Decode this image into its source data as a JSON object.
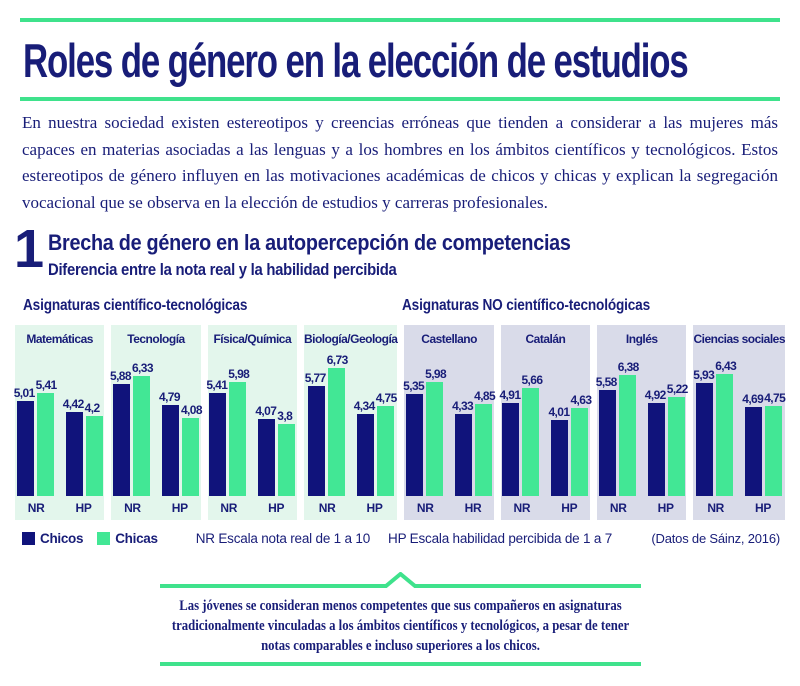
{
  "page": {
    "title": "Roles de género en la elección de estudios",
    "intro": "En nuestra sociedad existen estereotipos y creencias erróneas que tienden a considerar a las mujeres más capaces en materias asociadas a las lenguas y a los hombres en los ámbitos científicos y tecnológicos. Estos estereotipos de género influyen en las motivaciones académicas de chicos y chicas y explican la segregación vocacional que se observa en la elección de estudios y carreras profesionales."
  },
  "section": {
    "number": "1",
    "title": "Brecha de género en la autopercepción de competencias",
    "subtitle": "Diferencia entre la nota real y la habilidad percibida"
  },
  "chart_data": {
    "type": "bar",
    "groups": [
      {
        "label": "Asignaturas científico-tecnológicas",
        "theme": "mint"
      },
      {
        "label": "Asignaturas NO científico-tecnológicas",
        "theme": "lavender"
      }
    ],
    "series": [
      {
        "name": "Chicos",
        "color": "#10137b"
      },
      {
        "name": "Chicas",
        "color": "#42e795"
      }
    ],
    "axis_ranges": {
      "NR": [
        1,
        10
      ],
      "HP": [
        1,
        7
      ]
    },
    "panels": [
      {
        "subject": "Matemáticas",
        "group": 0,
        "pairs": [
          {
            "label": "NR",
            "chicos": 5.01,
            "chicas": 5.41
          },
          {
            "label": "HP",
            "chicos": 4.42,
            "chicas": 4.2
          }
        ]
      },
      {
        "subject": "Tecnología",
        "group": 0,
        "pairs": [
          {
            "label": "NR",
            "chicos": 5.88,
            "chicas": 6.33
          },
          {
            "label": "HP",
            "chicos": 4.79,
            "chicas": 4.08
          }
        ]
      },
      {
        "subject": "Física/Química",
        "group": 0,
        "pairs": [
          {
            "label": "NR",
            "chicos": 5.41,
            "chicas": 5.98
          },
          {
            "label": "HP",
            "chicos": 4.07,
            "chicas": 3.8
          }
        ]
      },
      {
        "subject": "Biología/Geología",
        "group": 0,
        "pairs": [
          {
            "label": "NR",
            "chicos": 5.77,
            "chicas": 6.73
          },
          {
            "label": "HP",
            "chicos": 4.34,
            "chicas": 4.75
          }
        ]
      },
      {
        "subject": "Castellano",
        "group": 1,
        "pairs": [
          {
            "label": "NR",
            "chicos": 5.35,
            "chicas": 5.98
          },
          {
            "label": "HR",
            "chicos": 4.33,
            "chicas": 4.85
          }
        ]
      },
      {
        "subject": "Catalán",
        "group": 1,
        "pairs": [
          {
            "label": "NR",
            "chicos": 4.91,
            "chicas": 5.66
          },
          {
            "label": "HP",
            "chicos": 4.01,
            "chicas": 4.63
          }
        ]
      },
      {
        "subject": "Inglés",
        "group": 1,
        "pairs": [
          {
            "label": "NR",
            "chicos": 5.58,
            "chicas": 6.38
          },
          {
            "label": "HP",
            "chicos": 4.92,
            "chicas": 5.22
          }
        ]
      },
      {
        "subject": "Ciencias sociales",
        "group": 1,
        "pairs": [
          {
            "label": "NR",
            "chicos": 5.93,
            "chicas": 6.43
          },
          {
            "label": "HP",
            "chicos": 4.69,
            "chicas": 4.75
          }
        ]
      }
    ]
  },
  "legend": {
    "chicos": "Chicos",
    "chicas": "Chicas",
    "nr_scale": "NR Escala nota real de 1 a 10",
    "hp_scale": "HP Escala habilidad percibida de 1 a 7",
    "source": "(Datos de Sáinz, 2016)"
  },
  "callout": {
    "text": "Las jóvenes se consideran menos competentes que sus compañeros en asignaturas tradicionalmente vinculadas a los ámbitos científicos y tecnológicos, a pesar de tener notas comparables e incluso superiores a los chicos."
  },
  "colors": {
    "navy": "#181d78",
    "bar_navy": "#10137b",
    "green": "#42e795",
    "line_green": "#3fe28c",
    "mint": "#e3f6ec",
    "lavender": "#d9dbe9"
  }
}
